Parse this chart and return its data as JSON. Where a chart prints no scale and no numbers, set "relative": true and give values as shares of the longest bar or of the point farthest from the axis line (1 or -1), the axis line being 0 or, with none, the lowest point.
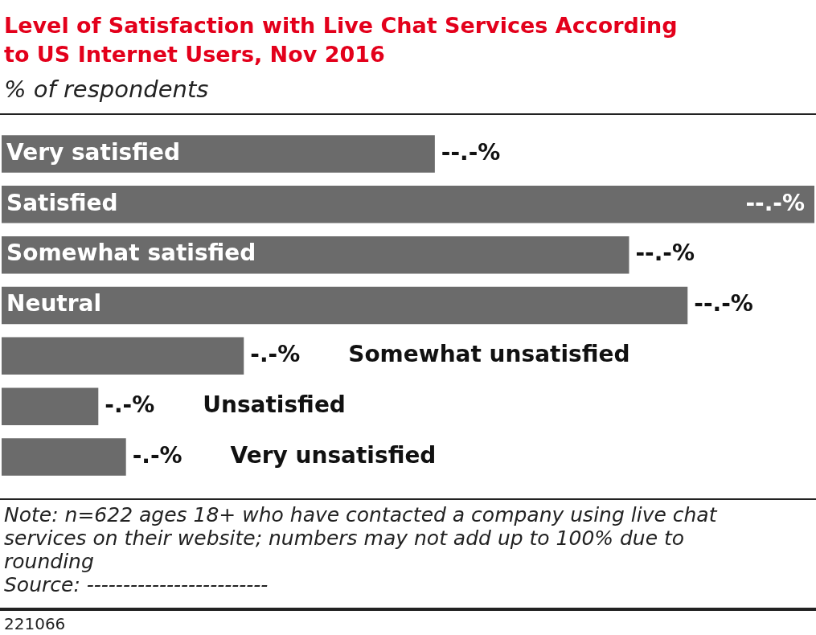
{
  "chart_data": {
    "type": "bar",
    "orientation": "horizontal",
    "relative": true,
    "title": "Level of Satisfaction with Live Chat Services According to US Internet Users, Nov 2016",
    "subtitle": "% of respondents",
    "categories": [
      "Very satisfied",
      "Satisfied",
      "Somewhat satisfied",
      "Neutral",
      "Somewhat unsatisfied",
      "Unsatisfied",
      "Very unsatisfied"
    ],
    "values": [
      0.533,
      1,
      0.772,
      0.844,
      0.298,
      0.119,
      0.153
    ],
    "color": "#6b6b6b",
    "annotations": [
      "--.-%",
      "--.-%",
      "--.-%",
      "--.-%",
      "-.-%",
      "-.-%",
      "-.-%",
      "Note: n=622 ages 18+ who have contacted a company using live chat services on their website; numbers may not add up to 100% due to rounding",
      "Source: -------------------------",
      "221066"
    ]
  }
}
